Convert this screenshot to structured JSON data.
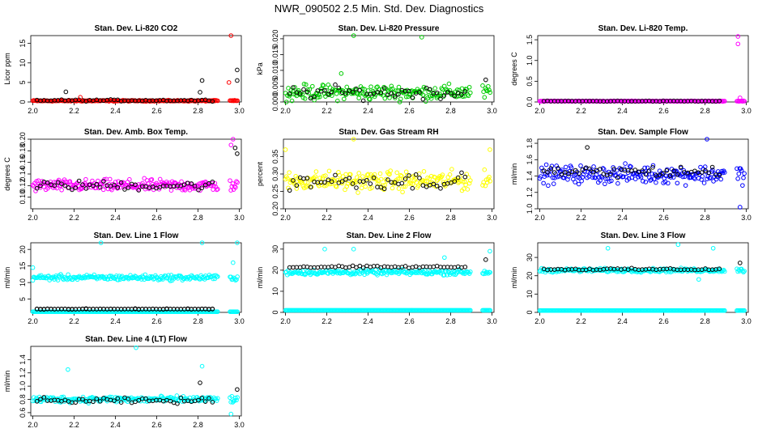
{
  "figure_title": "NWR_090502  2.5 Min. Std. Dev. Diagnostics",
  "colors": {
    "red": "#ff0000",
    "green": "#00cc00",
    "magenta": "#ff00ff",
    "yellow": "#ffff00",
    "blue": "#0000ff",
    "cyan": "#00ffff",
    "black": "#000000"
  },
  "chart_data": [
    {
      "type": "scatter",
      "title": "Stan. Dev. Li-820 CO2",
      "ylabel": "Licor ppm",
      "xlabel": "",
      "xlim": [
        1.99,
        3.01
      ],
      "ylim": [
        0,
        17
      ],
      "xticks": [
        2.0,
        2.2,
        2.4,
        2.6,
        2.8,
        3.0
      ],
      "xtick_labels": [
        "2.0",
        "2.2",
        "2.4",
        "2.6",
        "2.8",
        "3.0"
      ],
      "yticks": [
        0,
        5,
        10,
        15
      ],
      "ytick_labels": [
        "0",
        "5",
        "10",
        "15"
      ],
      "color": "red",
      "base": 0.3,
      "spread": 0.2,
      "overlay_base": 0.4,
      "overlay_spread": 0.3,
      "outliers": [
        [
          2.16,
          2.6,
          "black"
        ],
        [
          2.82,
          5.5,
          "black"
        ],
        [
          2.96,
          17,
          "red"
        ],
        [
          2.95,
          5.0,
          "red"
        ],
        [
          2.99,
          8.2,
          "black"
        ],
        [
          2.99,
          5.5,
          "black"
        ],
        [
          2.81,
          2.5,
          "black"
        ],
        [
          2.23,
          1.2,
          "red"
        ]
      ]
    },
    {
      "type": "scatter",
      "title": "Stan. Dev. Li-820 Pressure",
      "ylabel": "kPa",
      "xlabel": "",
      "xlim": [
        1.99,
        3.01
      ],
      "ylim": [
        0,
        0.021
      ],
      "xticks": [
        2.0,
        2.2,
        2.4,
        2.6,
        2.8,
        3.0
      ],
      "xtick_labels": [
        "2.0",
        "2.2",
        "2.4",
        "2.6",
        "2.8",
        "3.0"
      ],
      "yticks": [
        0,
        0.005,
        0.01,
        0.015,
        0.02
      ],
      "ytick_labels": [
        "0.000",
        "0.005",
        "0.010",
        "0.015",
        "0.020"
      ],
      "color": "green",
      "base": 0.003,
      "spread": 0.0035,
      "overlay_base": 0.003,
      "overlay_spread": 0.003,
      "outliers": [
        [
          2.33,
          0.021,
          "green"
        ],
        [
          2.66,
          0.0205,
          "green"
        ],
        [
          2.27,
          0.009,
          "green"
        ],
        [
          2.97,
          0.007,
          "black"
        ]
      ]
    },
    {
      "type": "scatter",
      "title": "Stan. Dev. Li-820 Temp.",
      "ylabel": "degrees C",
      "xlabel": "",
      "xlim": [
        1.99,
        3.01
      ],
      "ylim": [
        0,
        1.6
      ],
      "xticks": [
        2.0,
        2.2,
        2.4,
        2.6,
        2.8,
        3.0
      ],
      "xtick_labels": [
        "2.0",
        "2.2",
        "2.4",
        "2.6",
        "2.8",
        "3.0"
      ],
      "yticks": [
        0,
        0.5,
        1.0,
        1.5
      ],
      "ytick_labels": [
        "0.0",
        "0.5",
        "1.0",
        "1.5"
      ],
      "color": "magenta",
      "base": 0.02,
      "spread": 0.01,
      "overlay_base": 0.02,
      "overlay_spread": 0.01,
      "outliers": [
        [
          2.96,
          1.58,
          "magenta"
        ],
        [
          2.96,
          1.4,
          "magenta"
        ],
        [
          2.97,
          0.1,
          "magenta"
        ]
      ]
    },
    {
      "type": "scatter",
      "title": "Stan. Dev. Amb. Box Temp.",
      "ylabel": "degrees C",
      "xlabel": "",
      "xlim": [
        1.99,
        3.01
      ],
      "ylim": [
        0.08,
        0.2
      ],
      "xticks": [
        2.0,
        2.2,
        2.4,
        2.6,
        2.8,
        3.0
      ],
      "xtick_labels": [
        "2.0",
        "2.2",
        "2.4",
        "2.6",
        "2.8",
        "3.0"
      ],
      "yticks": [
        0.1,
        0.12,
        0.14,
        0.16,
        0.18,
        0.2
      ],
      "ytick_labels": [
        "0.10",
        "0.12",
        "0.14",
        "0.16",
        "0.18",
        "0.20"
      ],
      "color": "magenta",
      "base": 0.12,
      "spread": 0.015,
      "overlay_base": 0.12,
      "overlay_spread": 0.012,
      "outliers": [
        [
          2.97,
          0.2,
          "magenta"
        ],
        [
          2.98,
          0.185,
          "black"
        ],
        [
          2.96,
          0.19,
          "magenta"
        ],
        [
          2.99,
          0.175,
          "black"
        ]
      ]
    },
    {
      "type": "scatter",
      "title": "Stan. Dev. Gas Stream RH",
      "ylabel": "percent",
      "xlabel": "",
      "xlim": [
        1.99,
        3.01
      ],
      "ylim": [
        0.2,
        0.4
      ],
      "xticks": [
        2.0,
        2.2,
        2.4,
        2.6,
        2.8,
        3.0
      ],
      "xtick_labels": [
        "2.0",
        "2.2",
        "2.4",
        "2.6",
        "2.8",
        "3.0"
      ],
      "yticks": [
        0.2,
        0.25,
        0.3,
        0.35
      ],
      "ytick_labels": [
        "0.20",
        "0.25",
        "0.30",
        "0.35"
      ],
      "color": "yellow",
      "base": 0.28,
      "spread": 0.04,
      "overlay_base": 0.28,
      "overlay_spread": 0.035,
      "outliers": [
        [
          2.33,
          0.4,
          "yellow"
        ],
        [
          2.0,
          0.37,
          "yellow"
        ],
        [
          2.99,
          0.37,
          "yellow"
        ]
      ]
    },
    {
      "type": "scatter",
      "title": "Stan. Dev. Sample Flow",
      "ylabel": "ml/min",
      "xlabel": "",
      "xlim": [
        1.99,
        3.01
      ],
      "ylim": [
        1.0,
        1.85
      ],
      "xticks": [
        2.0,
        2.2,
        2.4,
        2.6,
        2.8,
        3.0
      ],
      "xtick_labels": [
        "2.0",
        "2.2",
        "2.4",
        "2.6",
        "2.8",
        "3.0"
      ],
      "yticks": [
        1.0,
        1.2,
        1.4,
        1.6,
        1.8
      ],
      "ytick_labels": [
        "1.0",
        "1.2",
        "1.4",
        "1.6",
        "1.8"
      ],
      "color": "blue",
      "base": 1.42,
      "spread": 0.16,
      "overlay_base": 1.45,
      "overlay_spread": 0.1,
      "outliers": [
        [
          2.81,
          1.85,
          "blue"
        ],
        [
          2.97,
          1.02,
          "blue"
        ],
        [
          2.23,
          1.75,
          "black"
        ]
      ]
    },
    {
      "type": "scatter",
      "title": "Stan. Dev. Line 1 Flow",
      "ylabel": "ml/min",
      "xlabel": "",
      "xlim": [
        1.99,
        3.01
      ],
      "ylim": [
        1,
        22
      ],
      "xticks": [
        2.0,
        2.2,
        2.4,
        2.6,
        2.8,
        3.0
      ],
      "xtick_labels": [
        "2.0",
        "2.2",
        "2.4",
        "2.6",
        "2.8",
        "3.0"
      ],
      "yticks": [
        5,
        10,
        15,
        20
      ],
      "ytick_labels": [
        "5",
        "10",
        "15",
        "20"
      ],
      "color": "cyan",
      "base": 11.5,
      "spread": 1.2,
      "overlay_base": 2.0,
      "overlay_spread": 0.2,
      "floor": 1.2,
      "outliers": [
        [
          2.33,
          22,
          "cyan"
        ],
        [
          2.82,
          22,
          "cyan"
        ],
        [
          2.99,
          22,
          "cyan"
        ],
        [
          2.0,
          14.5,
          "cyan"
        ],
        [
          2.97,
          16,
          "cyan"
        ]
      ]
    },
    {
      "type": "scatter",
      "title": "Stan. Dev. Line 2 Flow",
      "ylabel": "ml/min",
      "xlabel": "",
      "xlim": [
        1.99,
        3.01
      ],
      "ylim": [
        0,
        33
      ],
      "xticks": [
        2.0,
        2.2,
        2.4,
        2.6,
        2.8,
        3.0
      ],
      "xtick_labels": [
        "2.0",
        "2.2",
        "2.4",
        "2.6",
        "2.8",
        "3.0"
      ],
      "yticks": [
        0,
        10,
        20,
        30
      ],
      "ytick_labels": [
        "0",
        "10",
        "20",
        "30"
      ],
      "color": "cyan",
      "base": 19.0,
      "spread": 1.8,
      "overlay_base": 21.5,
      "overlay_spread": 0.8,
      "floor": 1.0,
      "outliers": [
        [
          2.33,
          30,
          "cyan"
        ],
        [
          2.19,
          30,
          "cyan"
        ],
        [
          2.99,
          29,
          "cyan"
        ],
        [
          2.77,
          26,
          "cyan"
        ],
        [
          2.97,
          25,
          "black"
        ]
      ]
    },
    {
      "type": "scatter",
      "title": "Stan. Dev. Line 3 Flow",
      "ylabel": "ml/min",
      "xlabel": "",
      "xlim": [
        1.99,
        3.01
      ],
      "ylim": [
        0,
        38
      ],
      "xticks": [
        2.0,
        2.2,
        2.4,
        2.6,
        2.8,
        3.0
      ],
      "xtick_labels": [
        "2.0",
        "2.2",
        "2.4",
        "2.6",
        "2.8",
        "3.0"
      ],
      "yticks": [
        0,
        10,
        20,
        30
      ],
      "ytick_labels": [
        "0",
        "10",
        "20",
        "30"
      ],
      "color": "cyan",
      "base": 23.0,
      "spread": 1.5,
      "overlay_base": 23.5,
      "overlay_spread": 0.8,
      "floor": 1.0,
      "outliers": [
        [
          2.33,
          35,
          "cyan"
        ],
        [
          2.67,
          37,
          "cyan"
        ],
        [
          2.84,
          35,
          "cyan"
        ],
        [
          2.77,
          18,
          "cyan"
        ],
        [
          2.97,
          27,
          "black"
        ]
      ]
    },
    {
      "type": "scatter",
      "title": "Stan. Dev. Line 4 (LT) Flow",
      "ylabel": "ml/min",
      "xlabel": "",
      "xlim": [
        1.99,
        3.01
      ],
      "ylim": [
        0.55,
        1.6
      ],
      "xticks": [
        2.0,
        2.2,
        2.4,
        2.6,
        2.8,
        3.0
      ],
      "xtick_labels": [
        "2.0",
        "2.2",
        "2.4",
        "2.6",
        "2.8",
        "3.0"
      ],
      "yticks": [
        0.6,
        0.8,
        1.0,
        1.2,
        1.4
      ],
      "ytick_labels": [
        "0.6",
        "0.8",
        "1.0",
        "1.2",
        "1.4"
      ],
      "color": "cyan",
      "base": 0.8,
      "spread": 0.07,
      "overlay_base": 0.78,
      "overlay_spread": 0.06,
      "outliers": [
        [
          2.5,
          1.58,
          "cyan"
        ],
        [
          2.17,
          1.25,
          "cyan"
        ],
        [
          2.82,
          1.3,
          "cyan"
        ],
        [
          2.81,
          1.05,
          "black"
        ],
        [
          2.99,
          0.95,
          "black"
        ],
        [
          2.96,
          0.58,
          "cyan"
        ]
      ]
    }
  ]
}
